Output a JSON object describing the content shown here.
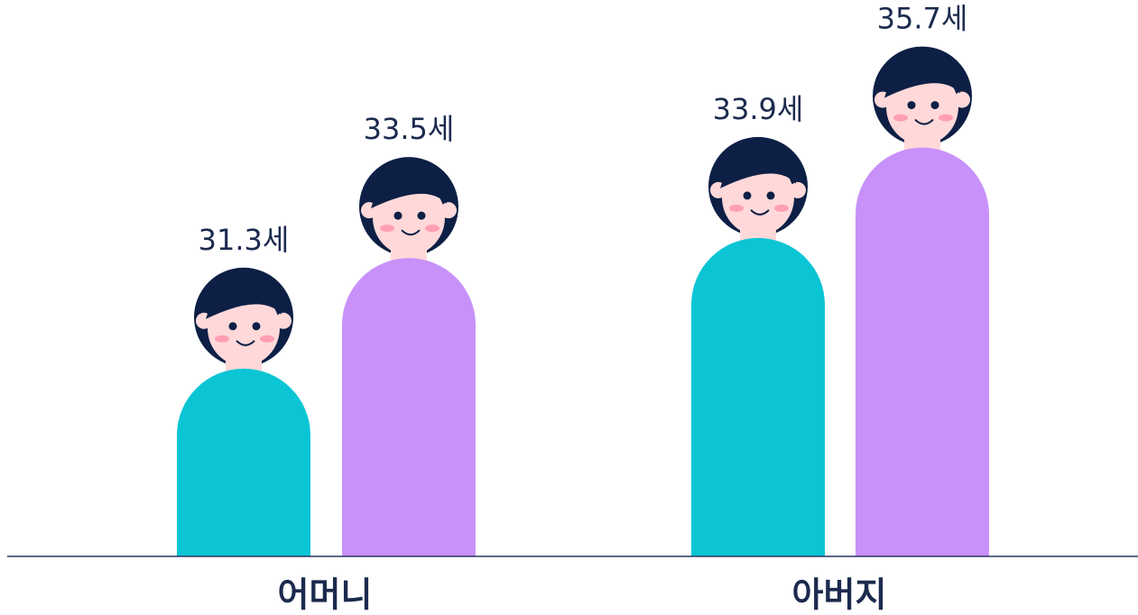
{
  "chart_data": {
    "type": "pictogram-bar",
    "categories": [
      "어머니",
      "아버지"
    ],
    "series": [
      {
        "color": "#0bc5d5",
        "values": [
          31.3,
          33.9
        ],
        "value_labels": [
          "31.3세",
          "33.9세"
        ]
      },
      {
        "color": "#c891fa",
        "values": [
          33.5,
          35.7
        ],
        "value_labels": [
          "33.5세",
          "35.7세"
        ]
      }
    ],
    "ylim": [
      25.5,
      36.5
    ]
  }
}
